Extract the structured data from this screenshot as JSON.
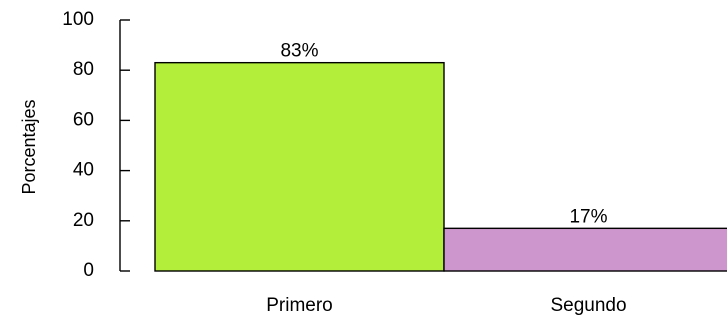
{
  "chart_data": {
    "type": "bar",
    "title": "",
    "xlabel": "",
    "ylabel": "Porcentajes",
    "ylim": [
      0,
      100
    ],
    "yticks": [
      0,
      20,
      40,
      60,
      80,
      100
    ],
    "categories": [
      "Primero",
      "Segundo"
    ],
    "values": [
      83,
      17
    ],
    "data_labels": [
      "83%",
      "17%"
    ],
    "colors": [
      "#b3ee3a",
      "#cd96cd"
    ],
    "grid": false,
    "legend": "none"
  }
}
